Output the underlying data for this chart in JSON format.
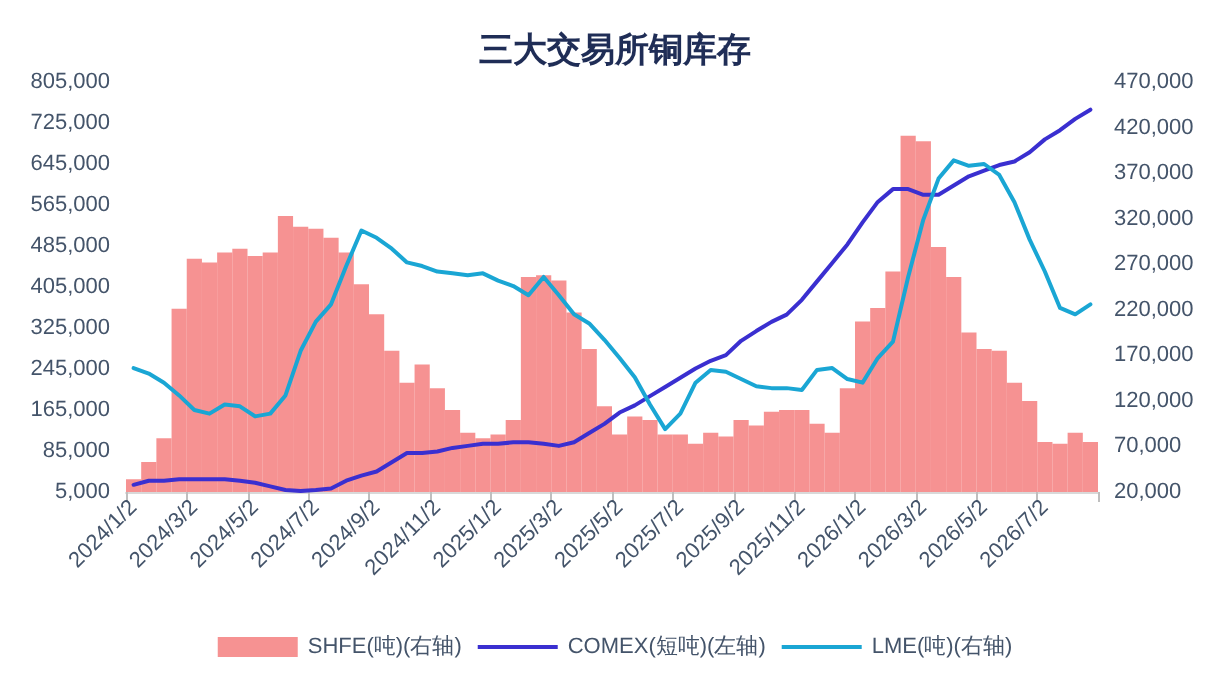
{
  "chart_data": {
    "type": "bar",
    "title": "三大交易所铜库存",
    "categories": [
      "2024/1/2",
      null,
      null,
      null,
      "2024/3/2",
      null,
      null,
      null,
      "2024/5/2",
      null,
      null,
      null,
      "2024/7/2",
      null,
      null,
      null,
      "2024/9/2",
      null,
      null,
      null,
      "2024/11/2",
      null,
      null,
      null,
      "2025/1/2",
      null,
      null,
      null,
      "2025/3/2",
      null,
      null,
      null,
      "2025/5/2",
      null,
      null,
      null,
      "2025/7/2",
      null,
      null,
      null,
      "2025/9/2",
      null,
      null,
      null,
      "2025/11/2",
      null,
      null,
      null,
      "2026/1/2",
      null,
      null,
      null,
      "2026/3/2",
      null,
      null,
      null,
      "2026/5/2",
      null,
      null,
      null,
      "2026/7/2",
      null,
      null,
      null
    ],
    "series": [
      {
        "name": "SHFE(吨)(右轴)",
        "axis": "y2",
        "color": "#f47f7f",
        "values": [
          34000,
          53000,
          79000,
          221000,
          276000,
          272000,
          283000,
          287000,
          279000,
          283000,
          323000,
          311000,
          309000,
          299000,
          283000,
          248000,
          215000,
          175000,
          140000,
          160000,
          134000,
          110000,
          85000,
          79000,
          83000,
          99000,
          256000,
          258000,
          252000,
          217000,
          177000,
          114000,
          83000,
          103000,
          99000,
          83000,
          83000,
          73000,
          85000,
          81000,
          99000,
          93000,
          108000,
          110000,
          110000,
          95000,
          85000,
          134000,
          207000,
          222000,
          262000,
          411000,
          405000,
          289000,
          256000,
          195000,
          177000,
          175000,
          140000,
          120000,
          75000,
          73000,
          85000,
          75000
        ]
      },
      {
        "name": "COMEX(短吨)(左轴)",
        "type": "line",
        "color": "#3a2fd0",
        "values": [
          19000,
          27000,
          27000,
          30000,
          30000,
          30000,
          30000,
          27000,
          23000,
          16000,
          9000,
          7000,
          9000,
          12000,
          27000,
          37000,
          45000,
          63000,
          81000,
          81000,
          84000,
          91000,
          95000,
          99000,
          99000,
          102000,
          102000,
          99000,
          95000,
          102000,
          120000,
          138000,
          160000,
          174000,
          192000,
          210000,
          228000,
          246000,
          261000,
          272000,
          300000,
          319000,
          337000,
          351000,
          380000,
          416000,
          452000,
          488000,
          531000,
          571000,
          596000,
          596000,
          585000,
          585000,
          603000,
          621000,
          632000,
          643000,
          650000,
          668000,
          693000,
          711000,
          733000,
          751000
        ]
      },
      {
        "name": "LME(吨)(右轴)",
        "type": "line",
        "axis": "y2",
        "color": "#1aa6d4",
        "values": [
          156000,
          150000,
          140000,
          126000,
          110000,
          106000,
          116000,
          114000,
          103000,
          106000,
          126000,
          175000,
          207000,
          226000,
          268000,
          307000,
          299000,
          287000,
          272000,
          268000,
          262000,
          260000,
          258000,
          260000,
          252000,
          246000,
          236000,
          256000,
          236000,
          215000,
          205000,
          187000,
          167000,
          146000,
          116000,
          89000,
          106000,
          140000,
          154000,
          152000,
          144000,
          136000,
          134000,
          134000,
          132000,
          154000,
          156000,
          144000,
          140000,
          167000,
          185000,
          256000,
          319000,
          364000,
          384000,
          378000,
          380000,
          368000,
          338000,
          297000,
          262000,
          222000,
          215000,
          226000
        ]
      }
    ],
    "ylim": [
      5000,
      805000
    ],
    "yticks": [
      {
        "value": 5000,
        "label": "5,000"
      },
      {
        "value": 85000,
        "label": "85,000"
      },
      {
        "value": 165000,
        "label": "165,000"
      },
      {
        "value": 245000,
        "label": "245,000"
      },
      {
        "value": 325000,
        "label": "325,000"
      },
      {
        "value": 405000,
        "label": "405,000"
      },
      {
        "value": 485000,
        "label": "485,000"
      },
      {
        "value": 565000,
        "label": "565,000"
      },
      {
        "value": 645000,
        "label": "645,000"
      },
      {
        "value": 725000,
        "label": "725,000"
      },
      {
        "value": 805000,
        "label": "805,000"
      }
    ],
    "y2lim": [
      20000,
      470000
    ],
    "y2ticks": [
      {
        "value": 20000,
        "label": "20,000"
      },
      {
        "value": 70000,
        "label": "70,000"
      },
      {
        "value": 120000,
        "label": "120,000"
      },
      {
        "value": 170000,
        "label": "170,000"
      },
      {
        "value": 220000,
        "label": "220,000"
      },
      {
        "value": 270000,
        "label": "270,000"
      },
      {
        "value": 320000,
        "label": "320,000"
      },
      {
        "value": 370000,
        "label": "370,000"
      },
      {
        "value": 420000,
        "label": "420,000"
      },
      {
        "value": 470000,
        "label": "470,000"
      }
    ],
    "grid": false,
    "legend": "bottom",
    "marker": "none"
  }
}
